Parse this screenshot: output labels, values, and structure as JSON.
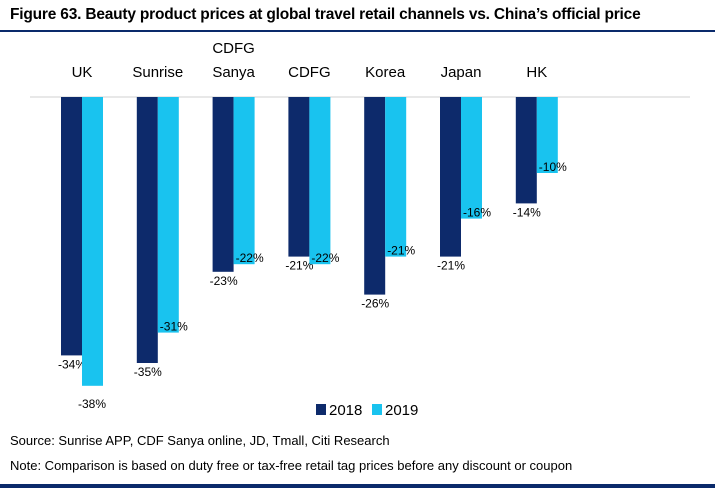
{
  "title": "Figure 63. Beauty product prices at global travel retail channels vs. China’s official price",
  "source": "Source: Sunrise APP, CDF Sanya online, JD, Tmall, Citi Research",
  "note": "Note: Comparison is based on duty free or tax-free retail tag prices before any discount or coupon",
  "colors": {
    "s2018": "#0d2a6b",
    "s2019": "#19c3ef",
    "accent": "#0a2a6b"
  },
  "chart_data": {
    "type": "bar",
    "categories": [
      [
        "UK"
      ],
      [
        "Sunrise"
      ],
      [
        "CDFG",
        "Sanya"
      ],
      [
        "CDFG"
      ],
      [
        "Korea"
      ],
      [
        "Japan"
      ],
      [
        "HK"
      ]
    ],
    "series": [
      {
        "name": "2018",
        "values": [
          -34,
          -35,
          -23,
          -21,
          -26,
          -21,
          -14
        ],
        "labels": [
          "-34%",
          "-35%",
          "-23%",
          "-21%",
          "-26%",
          "-21%",
          "-14%"
        ]
      },
      {
        "name": "2019",
        "values": [
          -38,
          -31,
          -22,
          -22,
          -21,
          -16,
          -10
        ],
        "labels": [
          "-38%",
          "-31%",
          "-22%",
          "-22%",
          "-21%",
          "-16%",
          "-10%"
        ]
      }
    ],
    "ylim": [
      -40,
      0
    ],
    "legend": "bottom-center"
  }
}
